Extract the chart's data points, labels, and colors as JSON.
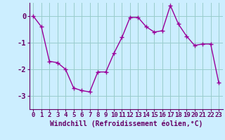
{
  "x": [
    0,
    1,
    2,
    3,
    4,
    5,
    6,
    7,
    8,
    9,
    10,
    11,
    12,
    13,
    14,
    15,
    16,
    17,
    18,
    19,
    20,
    21,
    22,
    23
  ],
  "y": [
    0.0,
    -0.4,
    -1.7,
    -1.75,
    -2.0,
    -2.7,
    -2.8,
    -2.85,
    -2.1,
    -2.1,
    -1.4,
    -0.8,
    -0.05,
    -0.05,
    -0.4,
    -0.6,
    -0.55,
    0.4,
    -0.3,
    -0.75,
    -1.1,
    -1.05,
    -1.05,
    -2.5
  ],
  "line_color": "#990099",
  "marker": "+",
  "marker_size": 4,
  "marker_lw": 1.0,
  "line_width": 1.0,
  "bg_color": "#cceeff",
  "grid_color": "#99cccc",
  "xlabel": "Windchill (Refroidissement éolien,°C)",
  "xlabel_fontsize": 7,
  "tick_fontsize": 6.5,
  "ylim": [
    -3.5,
    0.5
  ],
  "yticks": [
    0,
    -1,
    -2,
    -3
  ],
  "ytick_labels": [
    "0",
    "-1",
    "-2",
    "-3"
  ],
  "xlim": [
    -0.5,
    23.5
  ],
  "xticks": [
    0,
    1,
    2,
    3,
    4,
    5,
    6,
    7,
    8,
    9,
    10,
    11,
    12,
    13,
    14,
    15,
    16,
    17,
    18,
    19,
    20,
    21,
    22,
    23
  ],
  "text_color": "#660066"
}
